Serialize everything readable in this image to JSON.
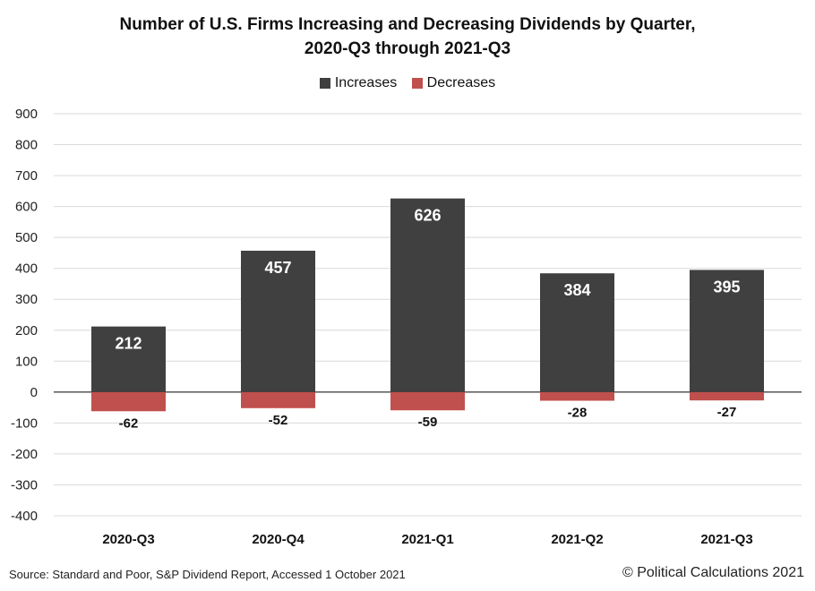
{
  "chart_data": {
    "type": "bar",
    "title_line1": "Number of U.S. Firms Increasing and Decreasing Dividends by Quarter,",
    "title_line2": "2020-Q3 through 2021-Q3",
    "categories": [
      "2020-Q3",
      "2020-Q4",
      "2021-Q1",
      "2021-Q2",
      "2021-Q3"
    ],
    "series": [
      {
        "name": "Increases",
        "values": [
          212,
          457,
          626,
          384,
          395
        ],
        "color": "#404040"
      },
      {
        "name": "Decreases",
        "values": [
          -62,
          -52,
          -59,
          -28,
          -27
        ],
        "color": "#c0504d"
      }
    ],
    "ylim": [
      -400,
      900
    ],
    "yticks": [
      900,
      800,
      700,
      600,
      500,
      400,
      300,
      200,
      100,
      0,
      -100,
      -200,
      -300,
      -400
    ],
    "grid": true,
    "legend_position": "top-center",
    "stacked": true
  },
  "footer": {
    "source": "Source: Standard and Poor, S&P Dividend Report, Accessed 1 October 2021",
    "copyright": "© Political Calculations 2021"
  }
}
